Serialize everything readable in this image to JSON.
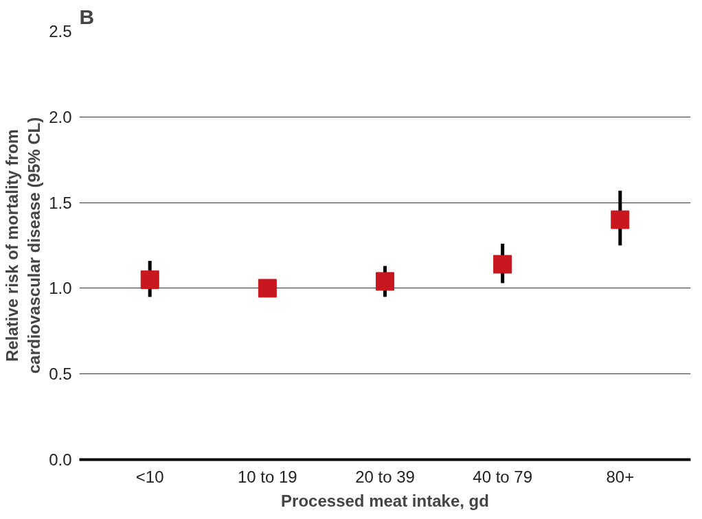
{
  "chart_data": {
    "type": "scatter",
    "title": "B",
    "xlabel": "Processed meat intake, gd",
    "ylabel": "Relative risk of mortality from\ncardiovascular disease (95% CL)",
    "categories": [
      "<10",
      "10 to 19",
      "20 to 39",
      "40 to 79",
      "80+"
    ],
    "values": [
      1.05,
      1.0,
      1.04,
      1.14,
      1.4
    ],
    "errors": [
      [
        0.95,
        1.16
      ],
      null,
      [
        0.95,
        1.13
      ],
      [
        1.03,
        1.26
      ],
      [
        1.25,
        1.57
      ]
    ],
    "color": "#c8171e",
    "marker": "square",
    "grid": "y",
    "ylim": [
      0,
      2.5
    ],
    "yticks": [
      {
        "value": 0,
        "label": "0.0"
      },
      {
        "value": 0.5,
        "label": "0.5"
      },
      {
        "value": 1,
        "label": "1.0"
      },
      {
        "value": 1.5,
        "label": "1.5"
      },
      {
        "value": 2,
        "label": "2.0"
      },
      {
        "value": 2.5,
        "label": "2.5"
      }
    ]
  }
}
